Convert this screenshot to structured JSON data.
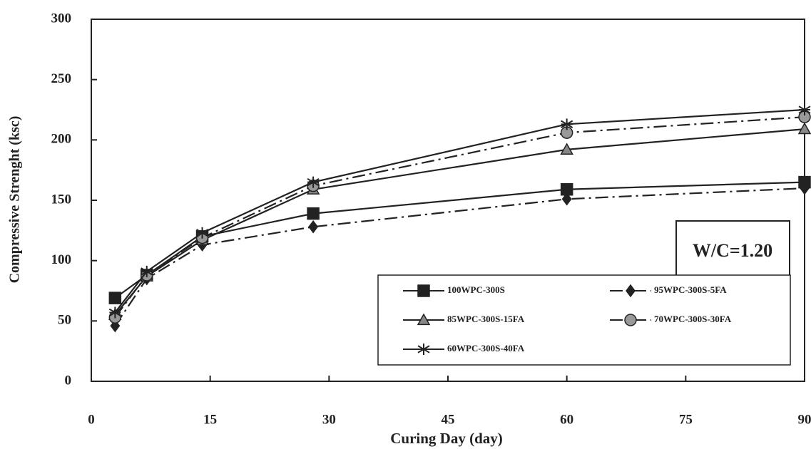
{
  "chart_data": {
    "type": "line",
    "x_label": "Curing Day (day)",
    "y_label": "Compressive Strenght (ksc)",
    "annotation": "W/C=1.20",
    "x": [
      3,
      7,
      14,
      28,
      60,
      90
    ],
    "series": [
      {
        "name": "100WPC-300S",
        "color": "#222222",
        "marker": "square",
        "dash": "solid",
        "values": [
          69,
          88,
          120,
          139,
          159,
          165
        ]
      },
      {
        "name": "95WPC-300S-5FA",
        "color": "#222222",
        "marker": "diamond",
        "dash": "dashdot",
        "values": [
          46,
          85,
          113,
          128,
          151,
          160
        ]
      },
      {
        "name": "85WPC-300S-15FA",
        "color": "#222222",
        "marker": "triangle",
        "dash": "solid",
        "values": [
          55,
          87,
          117,
          159,
          192,
          209
        ]
      },
      {
        "name": "70WPC-300S-30FA",
        "color": "#222222",
        "marker": "circle",
        "dash": "dashdot",
        "values": [
          53,
          88,
          119,
          162,
          206,
          219
        ]
      },
      {
        "name": "60WPC-300S-40FA",
        "color": "#222222",
        "marker": "asterisk",
        "dash": "solid",
        "values": [
          57,
          91,
          123,
          165,
          213,
          225
        ]
      }
    ],
    "xlim": [
      0,
      90
    ],
    "xticks": [
      0,
      15,
      30,
      45,
      60,
      75,
      90
    ],
    "ylim": [
      0,
      300
    ],
    "yticks": [
      0,
      50,
      100,
      150,
      200,
      250,
      300
    ],
    "grid": false
  }
}
